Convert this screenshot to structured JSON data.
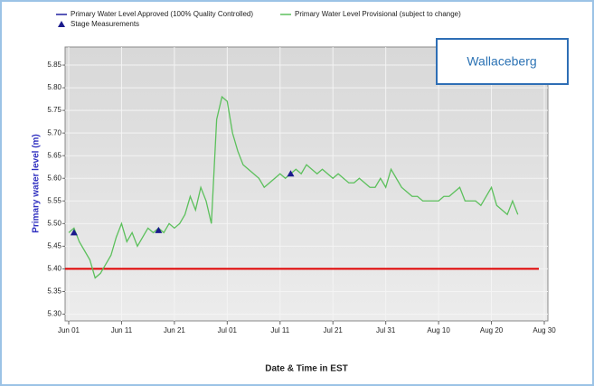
{
  "chart_data": {
    "type": "line",
    "annotation": "Wallaceberg",
    "xlabel": "Date & Time in EST",
    "ylabel": "Primary water level (m)",
    "xlim": [
      "06-01",
      "08-30"
    ],
    "xticks": [
      {
        "value": "06-01",
        "label": "Jun 01"
      },
      {
        "value": "06-11",
        "label": "Jun 11"
      },
      {
        "value": "06-21",
        "label": "Jun 21"
      },
      {
        "value": "07-01",
        "label": "Jul 01"
      },
      {
        "value": "07-11",
        "label": "Jul 11"
      },
      {
        "value": "07-21",
        "label": "Jul 21"
      },
      {
        "value": "07-31",
        "label": "Jul 31"
      },
      {
        "value": "08-10",
        "label": "Aug 10"
      },
      {
        "value": "08-20",
        "label": "Aug 20"
      },
      {
        "value": "08-30",
        "label": "Aug 30"
      }
    ],
    "ylim": [
      5.285,
      5.89
    ],
    "yticks": [
      {
        "value": 5.3,
        "label": "5.30"
      },
      5.35,
      {
        "value": 5.4,
        "label": "5.40"
      },
      5.45,
      {
        "value": 5.5,
        "label": "5.50"
      },
      5.55,
      {
        "value": 5.6,
        "label": "5.60"
      },
      5.65,
      {
        "value": 5.7,
        "label": "5.70"
      },
      5.75,
      {
        "value": 5.8,
        "label": "5.80"
      },
      5.85
    ],
    "grid": true,
    "threshold": {
      "value": 5.4,
      "color": "#e00000"
    },
    "series": [
      {
        "name": "Primary Water Level Approved (100% Quality Controlled)",
        "color": "#2020a0",
        "marker": "line",
        "x": [],
        "values": []
      },
      {
        "name": "Primary Water Level Provisional (subject to change)",
        "color": "#5cc05c",
        "marker": "line",
        "x": [
          "06-01",
          "06-02",
          "06-03",
          "06-04",
          "06-05",
          "06-06",
          "06-07",
          "06-08",
          "06-09",
          "06-10",
          "06-11",
          "06-12",
          "06-13",
          "06-14",
          "06-15",
          "06-16",
          "06-17",
          "06-18",
          "06-19",
          "06-20",
          "06-21",
          "06-22",
          "06-23",
          "06-24",
          "06-25",
          "06-26",
          "06-27",
          "06-28",
          "06-29",
          "06-30",
          "07-01",
          "07-02",
          "07-03",
          "07-04",
          "07-05",
          "07-06",
          "07-07",
          "07-08",
          "07-09",
          "07-10",
          "07-11",
          "07-12",
          "07-13",
          "07-14",
          "07-15",
          "07-16",
          "07-17",
          "07-18",
          "07-19",
          "07-20",
          "07-21",
          "07-22",
          "07-23",
          "07-24",
          "07-25",
          "07-26",
          "07-27",
          "07-28",
          "07-29",
          "07-30",
          "07-31",
          "08-01",
          "08-02",
          "08-03",
          "08-04",
          "08-05",
          "08-06",
          "08-07",
          "08-08",
          "08-09",
          "08-10",
          "08-11",
          "08-12",
          "08-13",
          "08-14",
          "08-15",
          "08-16",
          "08-17",
          "08-18",
          "08-19",
          "08-20",
          "08-21",
          "08-22",
          "08-23",
          "08-24",
          "08-25"
        ],
        "values": [
          5.48,
          5.49,
          5.46,
          5.44,
          5.42,
          5.38,
          5.39,
          5.41,
          5.43,
          5.47,
          5.5,
          5.46,
          5.48,
          5.45,
          5.47,
          5.49,
          5.48,
          5.49,
          5.48,
          5.5,
          5.49,
          5.5,
          5.52,
          5.56,
          5.53,
          5.58,
          5.55,
          5.5,
          5.73,
          5.78,
          5.77,
          5.7,
          5.66,
          5.63,
          5.62,
          5.61,
          5.6,
          5.58,
          5.59,
          5.6,
          5.61,
          5.6,
          5.61,
          5.62,
          5.61,
          5.63,
          5.62,
          5.61,
          5.62,
          5.61,
          5.6,
          5.61,
          5.6,
          5.59,
          5.59,
          5.6,
          5.59,
          5.58,
          5.58,
          5.6,
          5.58,
          5.62,
          5.6,
          5.58,
          5.57,
          5.56,
          5.56,
          5.55,
          5.55,
          5.55,
          5.55,
          5.56,
          5.56,
          5.57,
          5.58,
          5.55,
          5.55,
          5.55,
          5.54,
          5.56,
          5.58,
          5.54,
          5.53,
          5.52,
          5.55,
          5.52
        ]
      },
      {
        "name": "Stage Measurements",
        "color": "#1a1a8c",
        "marker": "triangle",
        "x": [
          "06-02",
          "06-18",
          "07-13"
        ],
        "values": [
          5.48,
          5.485,
          5.61
        ]
      }
    ]
  }
}
